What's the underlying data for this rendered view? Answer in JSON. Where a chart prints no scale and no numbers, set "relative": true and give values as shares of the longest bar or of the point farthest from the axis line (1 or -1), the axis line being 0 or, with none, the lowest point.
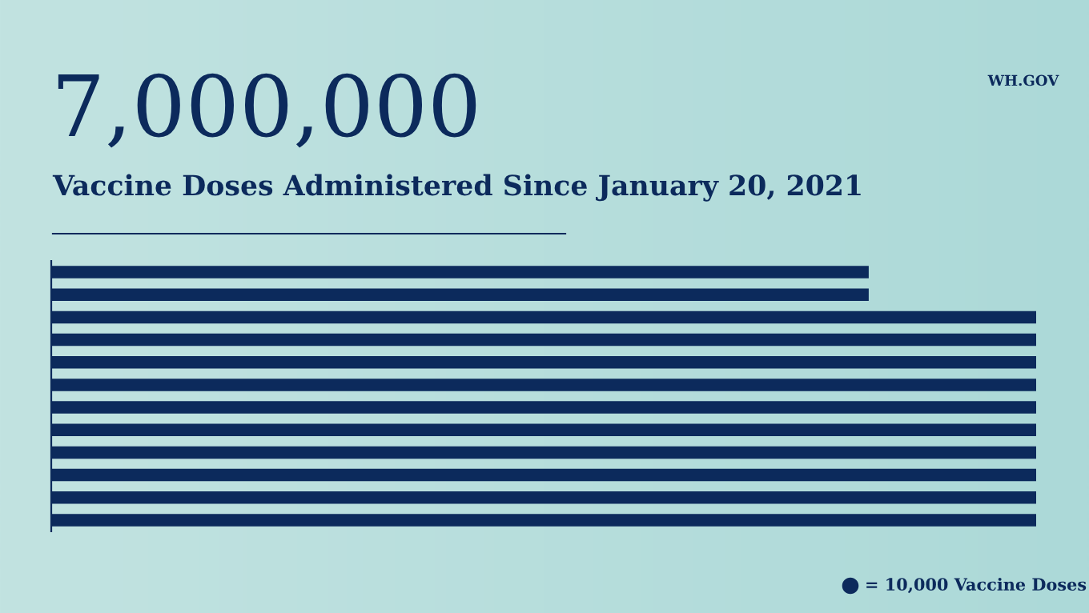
{
  "chart_data": {
    "type": "bar",
    "orientation": "horizontal",
    "relative": true,
    "title": "7,000,000",
    "subtitle": "Vaccine Doses Administered Since January 20, 2021",
    "categories": [
      null,
      null,
      null,
      null,
      null,
      null,
      null,
      null,
      null,
      null,
      null,
      null
    ],
    "values": [
      0.83,
      0.83,
      1,
      1,
      1,
      1,
      1,
      1,
      1,
      1,
      1,
      1
    ],
    "color": "#0c2a5c",
    "annotations": [
      "= 10,000 Vaccine Doses",
      "WH.GOV"
    ]
  }
}
